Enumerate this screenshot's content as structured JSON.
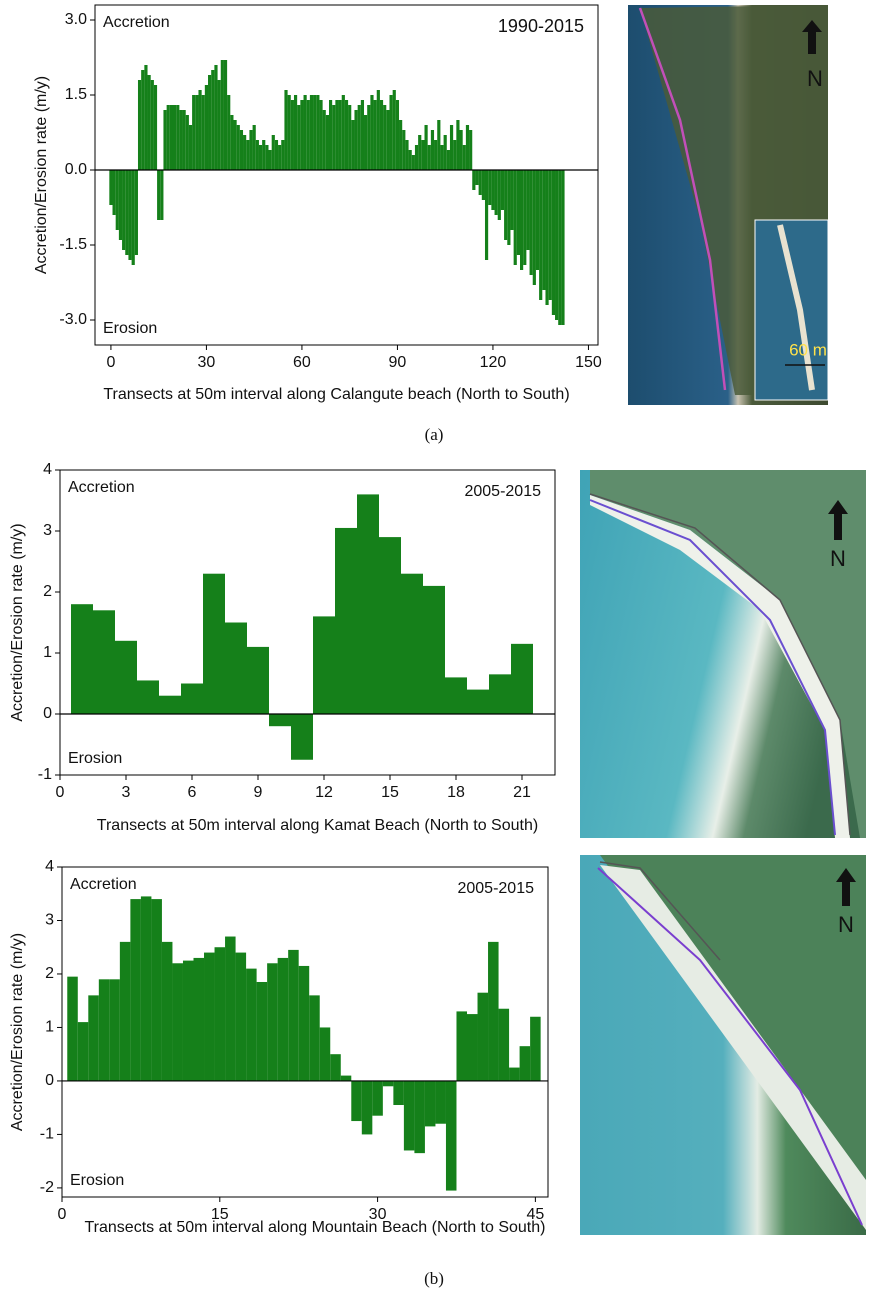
{
  "chart_data": [
    {
      "type": "bar",
      "color": "#15801a",
      "y_label": "Accretion/Erosion rate (m/y)",
      "x_label": "Transects at 50m interval along Calangute beach (North to South)",
      "upper_label": "Accretion",
      "lower_label": "Erosion",
      "period": "1990-2015",
      "xlim": [
        -5,
        153
      ],
      "xticks": [
        0,
        30,
        60,
        90,
        120,
        150
      ],
      "ylim": [
        -3.5,
        3.3
      ],
      "yticks": [
        {
          "value": 3,
          "label": "3.0"
        },
        1.5,
        {
          "value": 0,
          "label": "0.0"
        },
        -1.5,
        {
          "value": -3,
          "label": "-3.0"
        }
      ],
      "x": [
        0,
        1,
        2,
        3,
        4,
        5,
        6,
        7,
        8,
        9,
        10,
        11,
        12,
        13,
        14,
        15,
        16,
        17,
        18,
        19,
        20,
        21,
        22,
        23,
        24,
        25,
        26,
        27,
        28,
        29,
        30,
        31,
        32,
        33,
        34,
        35,
        36,
        37,
        38,
        39,
        40,
        41,
        42,
        43,
        44,
        45,
        46,
        47,
        48,
        49,
        50,
        51,
        52,
        53,
        54,
        55,
        56,
        57,
        58,
        59,
        60,
        61,
        62,
        63,
        64,
        65,
        66,
        67,
        68,
        69,
        70,
        71,
        72,
        73,
        74,
        75,
        76,
        77,
        78,
        79,
        80,
        81,
        82,
        83,
        84,
        85,
        86,
        87,
        88,
        89,
        90,
        91,
        92,
        93,
        94,
        95,
        96,
        97,
        98,
        99,
        100,
        101,
        102,
        103,
        104,
        105,
        106,
        107,
        108,
        109,
        110,
        111,
        112,
        113,
        114,
        115,
        116,
        117,
        118,
        119,
        120,
        121,
        122,
        123,
        124,
        125,
        126,
        127,
        128,
        129,
        130,
        131,
        132,
        133,
        134,
        135,
        136,
        137,
        138,
        139,
        140,
        141,
        142
      ],
      "values": [
        -0.7,
        -0.9,
        -1.2,
        -1.4,
        -1.6,
        -1.7,
        -1.8,
        -1.9,
        -1.7,
        1.8,
        2.0,
        2.1,
        1.9,
        1.8,
        1.7,
        -1.0,
        -1.0,
        1.2,
        1.3,
        1.3,
        1.3,
        1.3,
        1.2,
        1.2,
        1.1,
        0.9,
        1.5,
        1.5,
        1.6,
        1.5,
        1.7,
        1.9,
        2.0,
        2.1,
        1.8,
        2.2,
        2.2,
        1.5,
        1.1,
        1.0,
        0.9,
        0.8,
        0.7,
        0.6,
        0.8,
        0.9,
        0.6,
        0.5,
        0.6,
        0.5,
        0.4,
        0.7,
        0.6,
        0.5,
        0.6,
        1.6,
        1.5,
        1.4,
        1.5,
        1.3,
        1.4,
        1.5,
        1.4,
        1.5,
        1.5,
        1.5,
        1.4,
        1.2,
        1.1,
        1.4,
        1.3,
        1.4,
        1.4,
        1.5,
        1.4,
        1.3,
        1.0,
        1.2,
        1.3,
        1.4,
        1.1,
        1.3,
        1.5,
        1.4,
        1.6,
        1.4,
        1.3,
        1.2,
        1.5,
        1.6,
        1.4,
        1.0,
        0.8,
        0.6,
        0.4,
        0.3,
        0.5,
        0.7,
        0.6,
        0.9,
        0.5,
        0.8,
        0.6,
        1.0,
        0.5,
        0.7,
        0.4,
        0.9,
        0.6,
        1.0,
        0.8,
        0.5,
        0.9,
        0.8,
        -0.4,
        -0.3,
        -0.5,
        -0.6,
        -1.8,
        -0.7,
        -0.8,
        -0.9,
        -1.0,
        -0.8,
        -1.4,
        -1.5,
        -1.2,
        -1.9,
        -1.7,
        -2.0,
        -1.9,
        -1.6,
        -2.1,
        -2.3,
        -2.0,
        -2.6,
        -2.4,
        -2.7,
        -2.6,
        -2.9,
        -3.0,
        -3.1,
        -3.1
      ]
    },
    {
      "type": "bar",
      "color": "#15801a",
      "y_label": "Accretion/Erosion rate (m/y)",
      "x_label": "Transects at 50m interval along Kamat Beach (North to South)",
      "upper_label": "Accretion",
      "lower_label": "Erosion",
      "period": "2005-2015",
      "xlim": [
        0,
        22.5
      ],
      "xticks": [
        0,
        3,
        6,
        9,
        12,
        15,
        18,
        21
      ],
      "ylim": [
        -1,
        4
      ],
      "yticks": [
        -1,
        0,
        1,
        2,
        3,
        4
      ],
      "x": [
        1,
        2,
        3,
        4,
        5,
        6,
        7,
        8,
        9,
        10,
        11,
        12,
        13,
        14,
        15,
        16,
        17,
        18,
        19,
        20,
        21
      ],
      "values": [
        1.8,
        1.7,
        1.2,
        0.55,
        0.3,
        0.5,
        2.3,
        1.5,
        1.1,
        -0.2,
        -0.75,
        1.6,
        3.05,
        3.6,
        2.9,
        2.3,
        2.1,
        0.6,
        0.4,
        0.65,
        1.15
      ]
    },
    {
      "type": "bar",
      "color": "#15801a",
      "y_label": "Accretion/Erosion rate (m/y)",
      "x_label": "Transects at 50m interval along Mountain Beach (North to South)",
      "upper_label": "Accretion",
      "lower_label": "Erosion",
      "period": "2005-2015",
      "xlim": [
        0,
        46.2
      ],
      "xticks": [
        0,
        15,
        30,
        45
      ],
      "ylim": [
        -2.17,
        4
      ],
      "yticks": [
        -2,
        -1,
        0,
        1,
        2,
        3,
        4
      ],
      "x": [
        1,
        2,
        3,
        4,
        5,
        6,
        7,
        8,
        9,
        10,
        11,
        12,
        13,
        14,
        15,
        16,
        17,
        18,
        19,
        20,
        21,
        22,
        23,
        24,
        25,
        26,
        27,
        28,
        29,
        30,
        31,
        32,
        33,
        34,
        35,
        36,
        37,
        38,
        39,
        40,
        41,
        42,
        43,
        44,
        45
      ],
      "values": [
        1.95,
        1.1,
        1.6,
        1.9,
        1.9,
        2.6,
        3.4,
        3.45,
        3.4,
        2.6,
        2.2,
        2.25,
        2.3,
        2.4,
        2.5,
        2.7,
        2.4,
        2.1,
        1.85,
        2.2,
        2.3,
        2.45,
        2.15,
        1.6,
        1.0,
        0.5,
        0.1,
        -0.75,
        -1.0,
        -0.65,
        -0.1,
        -0.45,
        -1.3,
        -1.35,
        -0.85,
        -0.8,
        -2.05,
        1.3,
        1.25,
        1.65,
        2.6,
        1.35,
        0.25,
        0.65,
        1.2
      ]
    }
  ],
  "panel_labels": [
    "(a)",
    "(b)"
  ],
  "images": [
    {
      "north_label": "N",
      "scale_label": "60 m"
    },
    {
      "north_label": "N"
    },
    {
      "north_label": "N"
    }
  ]
}
